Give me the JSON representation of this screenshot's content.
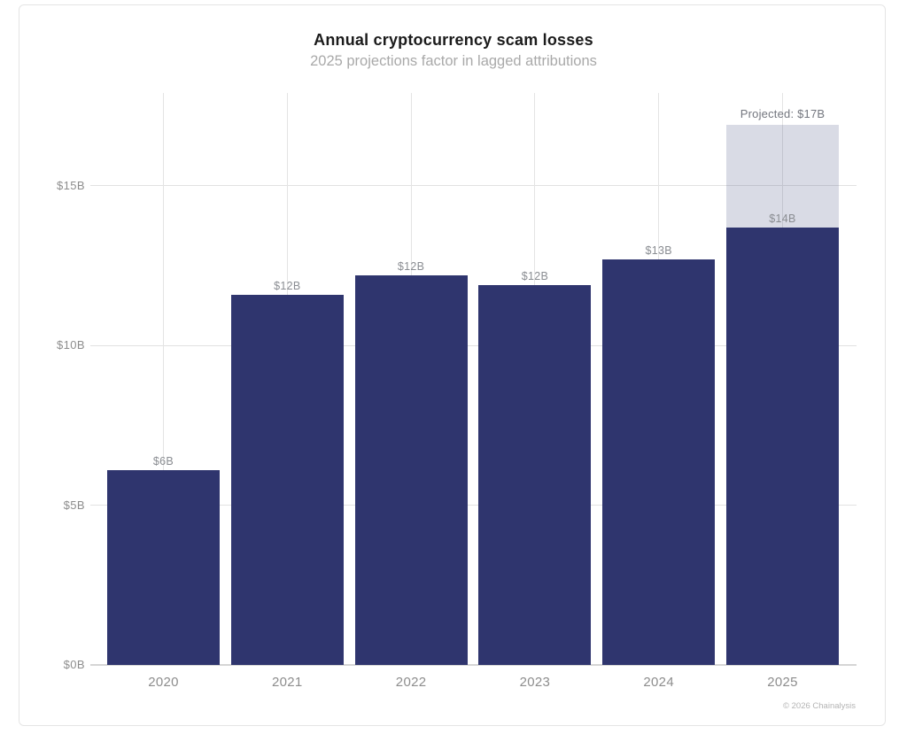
{
  "chart_data": {
    "type": "bar",
    "title": "Annual cryptocurrency scam losses",
    "subtitle": "2025 projections factor in lagged attributions",
    "categories": [
      "2020",
      "2021",
      "2022",
      "2023",
      "2024",
      "2025"
    ],
    "series": [
      {
        "name": "attributed-losses",
        "values": [
          6.1,
          11.6,
          12.2,
          11.9,
          12.7,
          13.7
        ]
      },
      {
        "name": "projected-additional",
        "values": [
          0,
          0,
          0,
          0,
          0,
          3.2
        ]
      }
    ],
    "bar_labels": [
      "$6B",
      "$12B",
      "$12B",
      "$12B",
      "$13B",
      "$14B"
    ],
    "projected_annotation": "Projected: $17B",
    "y_ticks": [
      "$0B",
      "$5B",
      "$10B",
      "$15B"
    ],
    "y_tick_values": [
      0,
      5,
      10,
      15
    ],
    "ylim": [
      0,
      17.9
    ],
    "grid": true,
    "legend_position": "none",
    "colors": {
      "bar": "#2f356e",
      "projected_cap": "rgba(47,53,110,0.18)",
      "gridline": "#e2e2e2"
    }
  },
  "footer": {
    "attribution": "© 2026 Chainalysis"
  }
}
